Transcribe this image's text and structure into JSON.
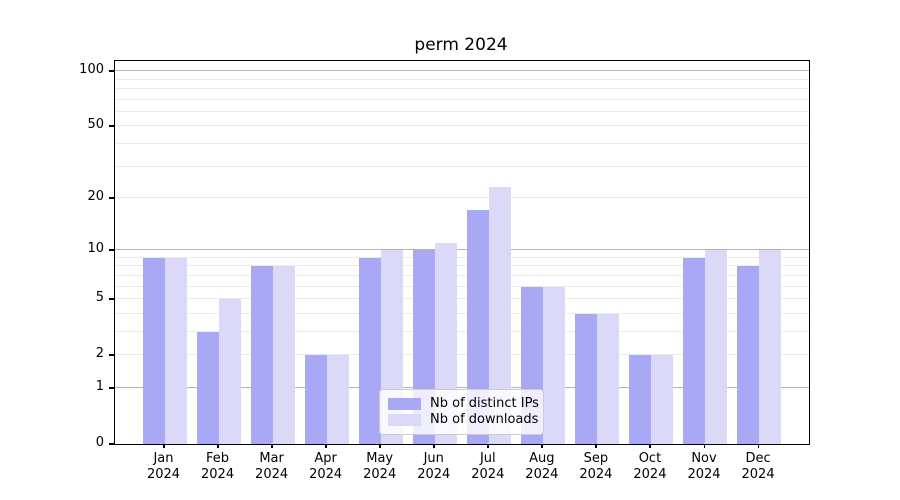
{
  "title": "perm 2024",
  "chart_data": {
    "type": "bar",
    "title": "perm 2024",
    "categories": [
      "Jan 2024",
      "Feb 2024",
      "Mar 2024",
      "Apr 2024",
      "May 2024",
      "Jun 2024",
      "Jul 2024",
      "Aug 2024",
      "Sep 2024",
      "Oct 2024",
      "Nov 2024",
      "Dec 2024"
    ],
    "series": [
      {
        "name": "Nb of distinct IPs",
        "color": "#a8a8f5",
        "values": [
          9,
          3,
          8,
          2,
          9,
          10,
          17,
          6,
          4,
          2,
          9,
          8
        ]
      },
      {
        "name": "Nb of downloads",
        "color": "#dadaf8",
        "values": [
          9,
          5,
          8,
          2,
          10,
          11,
          23,
          6,
          4,
          2,
          10,
          10
        ]
      }
    ],
    "xlabel": "",
    "ylabel": "",
    "yscale": "log1p",
    "ylim": [
      0,
      113
    ],
    "y_ticks": [
      0,
      1,
      2,
      5,
      10,
      20,
      50,
      100
    ],
    "y_minor_gridlines": [
      2,
      3,
      4,
      5,
      6,
      7,
      8,
      9,
      20,
      30,
      40,
      50,
      60,
      70,
      80,
      90
    ],
    "y_major_gridlines": [
      1,
      10,
      100
    ],
    "grid": "horizontal",
    "legend_position": "lower center"
  },
  "colors": {
    "major_grid": "#b5b5b5",
    "minor_grid": "#eaeaea",
    "spine": "#000000",
    "background": "#ffffff"
  }
}
